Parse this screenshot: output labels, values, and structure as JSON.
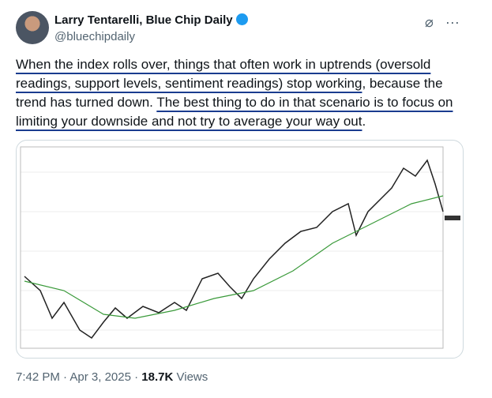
{
  "author": {
    "name": "Larry Tentarelli, Blue Chip Daily",
    "handle": "@bluechipdaily"
  },
  "post": {
    "segments": [
      {
        "text": "When the index rolls over, things that often work in uptrends (oversold readings, support levels, sentiment readings) stop working",
        "underline": true
      },
      {
        "text": ", because the trend has turned down. ",
        "underline": false
      },
      {
        "text": "The best thing to do in that scenario is to focus on limiting your downside and not try to average your way out",
        "underline": true
      },
      {
        "text": ".",
        "underline": false
      }
    ]
  },
  "footer": {
    "time": "7:42 PM",
    "date": "Apr 3, 2025",
    "views": "18.7K",
    "views_label": "Views"
  }
}
